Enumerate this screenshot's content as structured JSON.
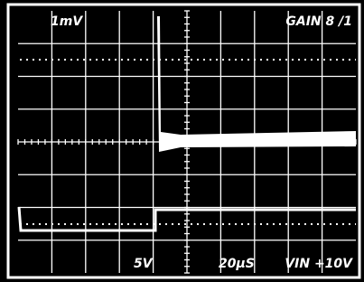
{
  "screen": {
    "top_left": "1mV",
    "top_right": "GAIN 8 /1",
    "bottom_left": "5V",
    "bottom_center": "20μS",
    "bottom_right": "VIN +10V"
  }
}
